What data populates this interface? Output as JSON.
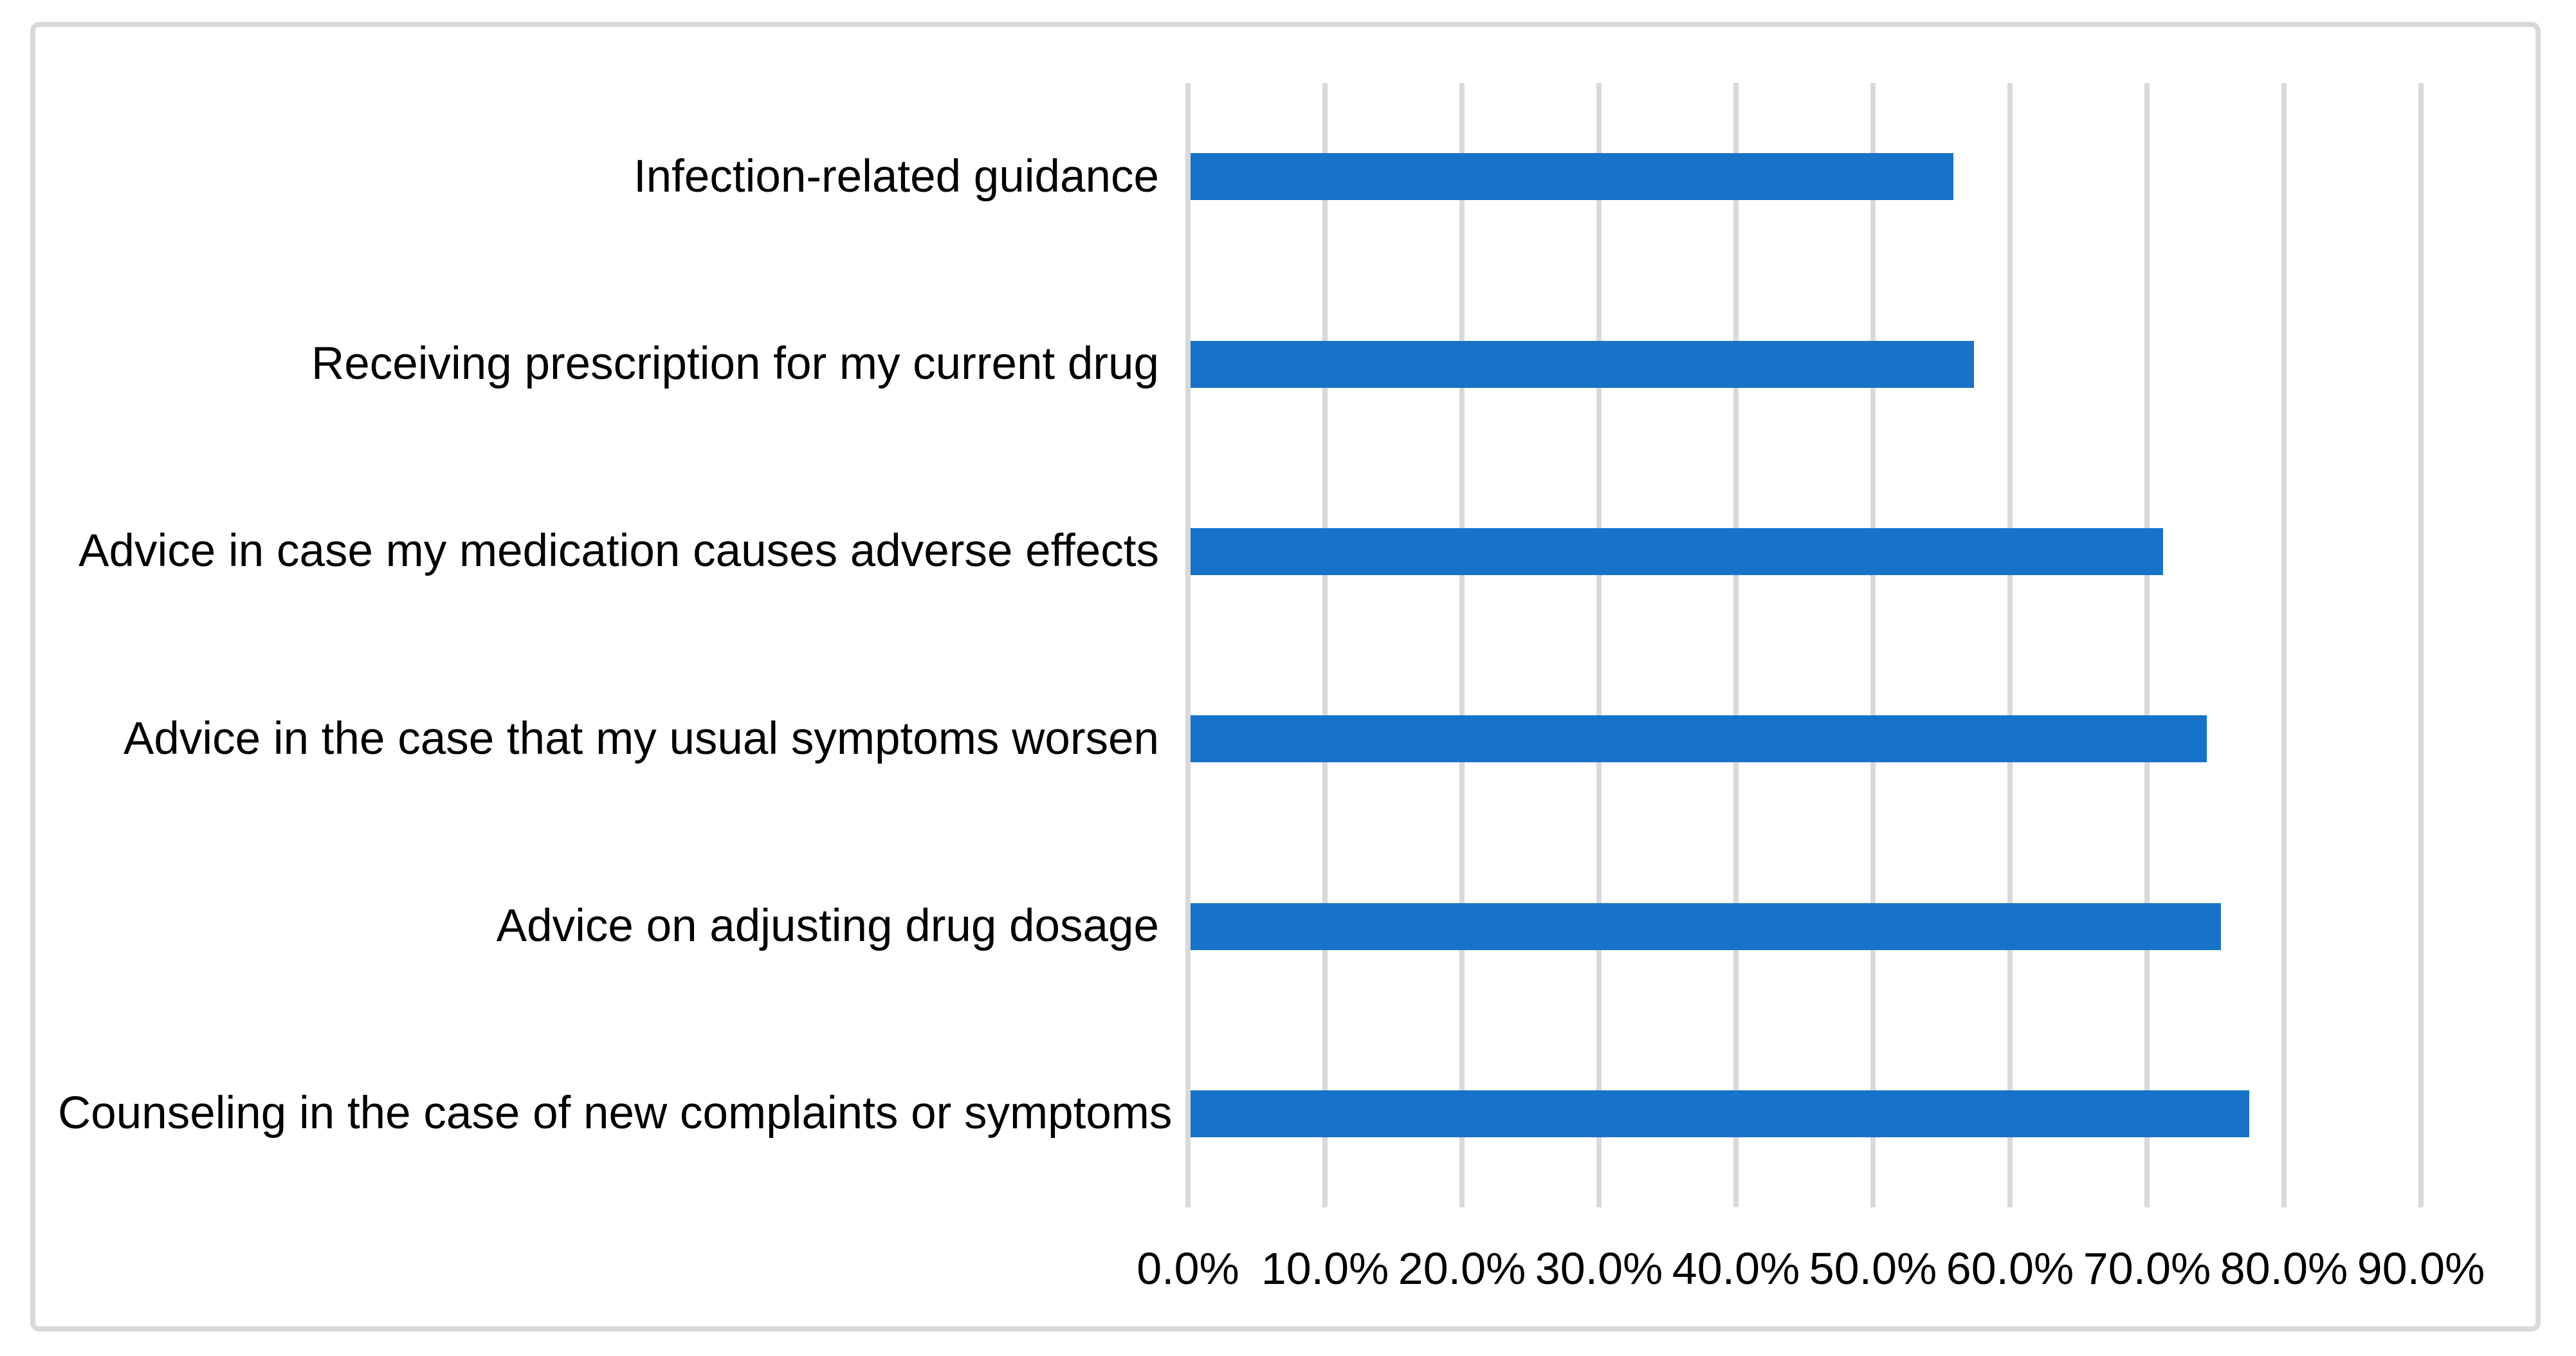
{
  "chart_data": {
    "type": "bar",
    "orientation": "horizontal",
    "title": "",
    "xlabel": "",
    "ylabel": "",
    "categories": [
      "Infection-related guidance",
      "Receiving prescription for my current drug",
      "Advice in case my medication causes adverse effects",
      "Advice in the case that my usual symptoms worsen",
      "Advice on adjusting drug dosage",
      "Counseling in the case of new complaints or symptoms"
    ],
    "values": [
      55.7,
      57.2,
      71.0,
      74.2,
      75.2,
      77.3
    ],
    "value_unit": "%",
    "xlim": [
      0,
      90
    ],
    "x_tick_values": [
      0,
      10,
      20,
      30,
      40,
      50,
      60,
      70,
      80,
      90
    ],
    "x_ticks": [
      "0.0%",
      "10.0%",
      "20.0%",
      "30.0%",
      "40.0%",
      "50.0%",
      "60.0%",
      "70.0%",
      "80.0%",
      "90.0%"
    ],
    "grid": "vertical-gridlines-on",
    "legend": "none",
    "data_labels": "none",
    "colors": {
      "bar": "#1773c8",
      "gridline": "#d9d9d9",
      "figure_border": "#d9d9d9",
      "text": "#000000",
      "background": "#ffffff"
    }
  }
}
